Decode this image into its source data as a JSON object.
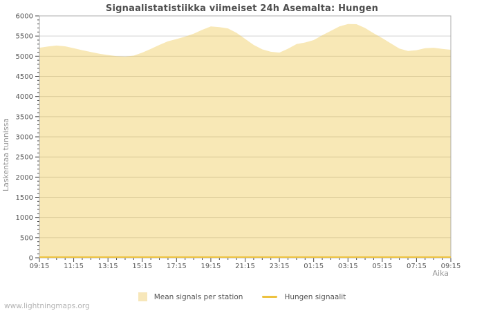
{
  "page": {
    "watermark": "www.lightningmaps.org"
  },
  "chart_data": {
    "type": "area",
    "title": "Signaalistatistiikka viimeiset 24h Asemalta: Hungen",
    "xlabel": "Aika",
    "ylabel": "Laskentaa tunnissa",
    "ylim": [
      0,
      6000
    ],
    "y_major_tick_step": 500,
    "y_minor_tick_step": 100,
    "x_hours_range": [
      0,
      24
    ],
    "x_minor_tick_step_hours": 0.5,
    "x_major_tick_hours": [
      0,
      2,
      4,
      6,
      8,
      10,
      12,
      14,
      16,
      18,
      20,
      22,
      24
    ],
    "x_major_tick_labels": [
      "09:15",
      "11:15",
      "13:15",
      "15:15",
      "17:15",
      "19:15",
      "21:15",
      "23:15",
      "01:15",
      "03:15",
      "05:15",
      "07:15",
      "09:15"
    ],
    "grid": "horizontal-only",
    "legend_position": "bottom-center",
    "colors": {
      "series_yellow": "#edc240",
      "area_fill_on_white": "#f9ebc7",
      "grid_line": "#d2d2d2",
      "plot_border": "#ababab",
      "tick_mark": "#444444",
      "tick_label": "#545454",
      "title_text": "#4f4f4f",
      "axis_title_text": "#979797",
      "watermark_text": "#b3b3b3"
    },
    "series": [
      {
        "name": "Mean signals per station",
        "style": "area",
        "color": "#edc240",
        "fill_opacity": 0.38,
        "x_hours": [
          0,
          0.5,
          1,
          1.5,
          2,
          2.5,
          3,
          3.5,
          4,
          4.5,
          5,
          5.5,
          6,
          6.5,
          7,
          7.5,
          8,
          8.5,
          9,
          9.5,
          10,
          10.5,
          11,
          11.5,
          12,
          12.5,
          13,
          13.5,
          14,
          14.5,
          15,
          15.5,
          16,
          16.5,
          17,
          17.5,
          18,
          18.5,
          19,
          19.5,
          20,
          20.5,
          21,
          21.5,
          22,
          22.5,
          23,
          23.5,
          24
        ],
        "values": [
          5210,
          5240,
          5265,
          5245,
          5200,
          5150,
          5105,
          5060,
          5030,
          5000,
          4990,
          5015,
          5090,
          5180,
          5280,
          5370,
          5425,
          5485,
          5560,
          5655,
          5740,
          5720,
          5690,
          5580,
          5430,
          5280,
          5170,
          5110,
          5090,
          5185,
          5300,
          5340,
          5400,
          5520,
          5630,
          5740,
          5800,
          5795,
          5700,
          5570,
          5450,
          5320,
          5190,
          5130,
          5150,
          5200,
          5210,
          5180,
          5160
        ]
      },
      {
        "name": "Hungen signaalit",
        "style": "line",
        "color": "#edc240",
        "x_hours": [
          0,
          24
        ],
        "values": [
          0,
          0
        ]
      }
    ]
  }
}
